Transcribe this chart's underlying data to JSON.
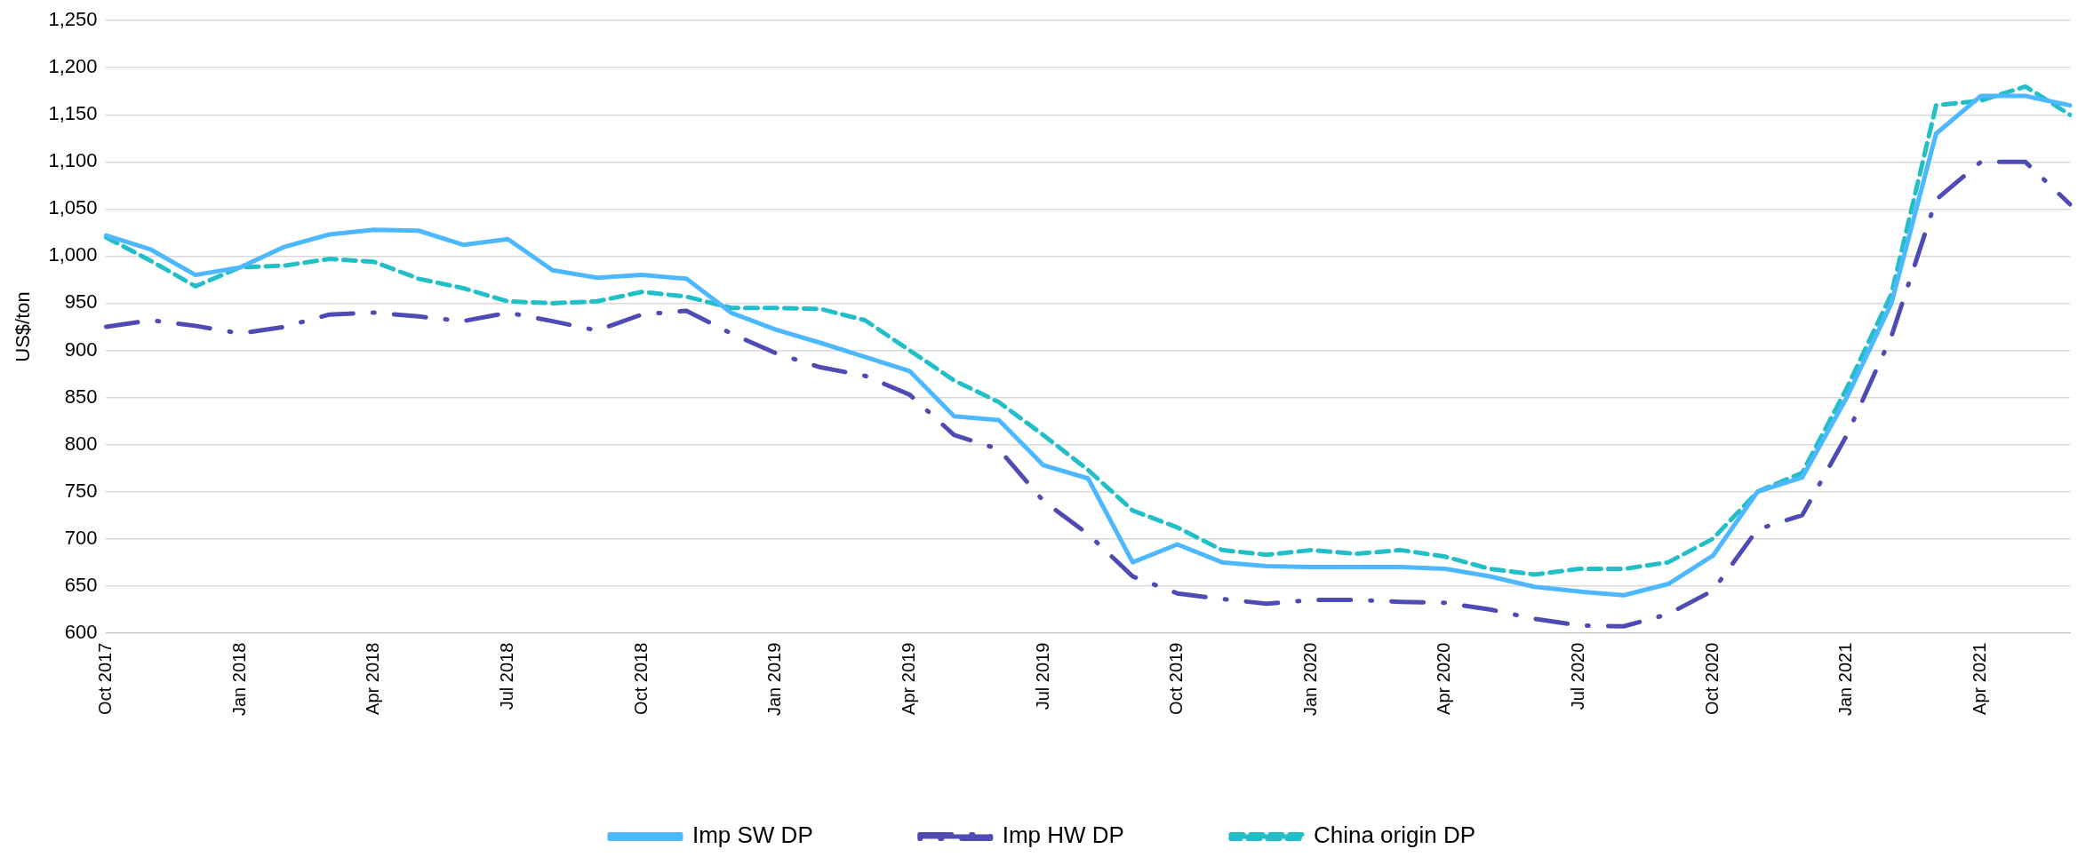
{
  "chart_data": {
    "type": "line",
    "ylabel": "US$/ton",
    "categories": [
      "Oct 2017",
      null,
      null,
      "Jan 2018",
      null,
      null,
      "Apr 2018",
      null,
      null,
      "Jul 2018",
      null,
      null,
      "Oct 2018",
      null,
      null,
      "Jan 2019",
      null,
      null,
      "Apr 2019",
      null,
      null,
      "Jul 2019",
      null,
      null,
      "Oct 2019",
      null,
      null,
      "Jan 2020",
      null,
      null,
      "Apr 2020",
      null,
      null,
      "Jul 2020",
      null,
      null,
      "Oct 2020",
      null,
      null,
      "Jan 2021",
      null,
      null,
      "Apr 2021",
      null,
      null
    ],
    "series": [
      {
        "name": "Imp SW DP",
        "color": "#4db8ff",
        "line_style": "solid",
        "values": [
          1022,
          1007,
          980,
          988,
          1010,
          1023,
          1028,
          1027,
          1012,
          1018,
          985,
          977,
          980,
          976,
          940,
          922,
          908,
          893,
          878,
          830,
          826,
          778,
          764,
          675,
          694,
          675,
          671,
          670,
          670,
          670,
          668,
          660,
          649,
          644,
          640,
          652,
          682,
          750,
          765,
          850,
          950,
          1130,
          1170,
          1170,
          1160
        ]
      },
      {
        "name": "Imp HW DP",
        "color": "#4f4bb5",
        "line_style": "dashdot",
        "values": [
          925,
          932,
          926,
          918,
          925,
          938,
          940,
          936,
          931,
          940,
          931,
          921,
          938,
          942,
          918,
          897,
          882,
          873,
          853,
          810,
          795,
          740,
          705,
          660,
          642,
          636,
          631,
          635,
          635,
          633,
          632,
          625,
          615,
          608,
          607,
          620,
          645,
          710,
          725,
          810,
          915,
          1060,
          1100,
          1100,
          1055
        ]
      },
      {
        "name": "China origin DP",
        "color": "#22bfc8",
        "line_style": "dashed",
        "values": [
          1020,
          995,
          968,
          988,
          990,
          997,
          994,
          976,
          966,
          952,
          950,
          952,
          962,
          957,
          945,
          945,
          944,
          932,
          900,
          868,
          845,
          810,
          773,
          730,
          712,
          688,
          683,
          688,
          684,
          688,
          681,
          668,
          662,
          668,
          668,
          675,
          700,
          750,
          770,
          860,
          960,
          1160,
          1165,
          1180,
          1150
        ]
      }
    ],
    "ylim": [
      600,
      1250
    ],
    "yticks": [
      600,
      650,
      700,
      750,
      800,
      850,
      900,
      950,
      {
        "value": 1000,
        "label": "1,000"
      },
      {
        "value": 1050,
        "label": "1,050"
      },
      {
        "value": 1100,
        "label": "1,100"
      },
      {
        "value": 1150,
        "label": "1,150"
      },
      {
        "value": 1200,
        "label": "1,200"
      },
      {
        "value": 1250,
        "label": "1,250"
      }
    ],
    "grid": "y",
    "legend": "bottom",
    "marker": "none"
  }
}
